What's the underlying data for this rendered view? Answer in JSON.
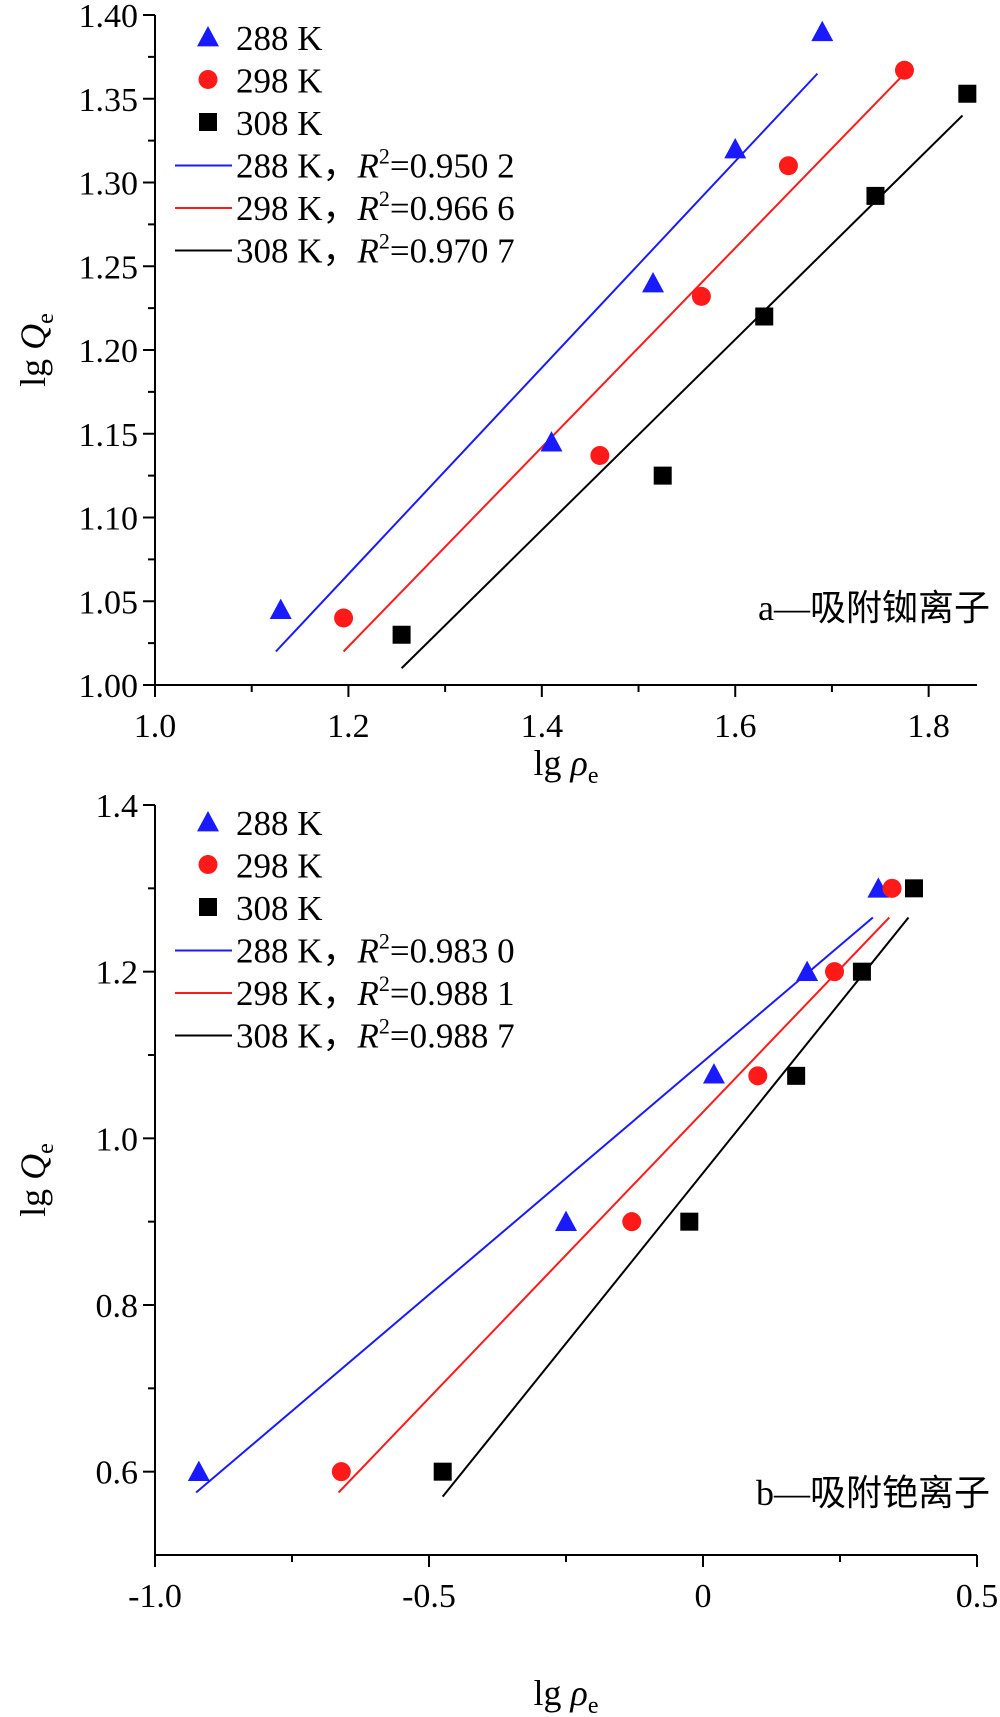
{
  "chart_data": [
    {
      "type": "scatter",
      "annotation": "a—吸附铷离子",
      "xlabel": "lg ρe",
      "ylabel": "lg Qe",
      "xlim": [
        1.0,
        1.85
      ],
      "ylim": [
        1.0,
        1.4
      ],
      "x_ticks": [
        "1.0",
        "1.2",
        "1.4",
        "1.6",
        "1.8"
      ],
      "y_ticks": [
        "1.00",
        "1.05",
        "1.10",
        "1.15",
        "1.20",
        "1.25",
        "1.30",
        "1.35",
        "1.40"
      ],
      "legend_position": "top-left",
      "series": [
        {
          "name": "288 K",
          "marker": "triangle",
          "color": "#1a1aff",
          "x": [
            1.13,
            1.41,
            1.515,
            1.6,
            1.69
          ],
          "y": [
            1.045,
            1.145,
            1.24,
            1.32,
            1.39
          ],
          "fit": {
            "label": "288 K，R²=0.950 2",
            "x": [
              1.125,
              1.685
            ],
            "y": [
              1.02,
              1.365
            ]
          }
        },
        {
          "name": "298 K",
          "marker": "circle",
          "color": "#ff1a1a",
          "x": [
            1.195,
            1.46,
            1.565,
            1.655,
            1.775
          ],
          "y": [
            1.04,
            1.137,
            1.232,
            1.31,
            1.367
          ],
          "fit": {
            "label": "298 K，R²=0.966 6",
            "x": [
              1.195,
              1.775
            ],
            "y": [
              1.02,
              1.365
            ]
          }
        },
        {
          "name": "308 K",
          "marker": "square",
          "color": "#000000",
          "x": [
            1.255,
            1.525,
            1.63,
            1.745,
            1.84
          ],
          "y": [
            1.03,
            1.125,
            1.22,
            1.292,
            1.353
          ],
          "fit": {
            "label": "308 K，R²=0.970 7",
            "x": [
              1.255,
              1.835
            ],
            "y": [
              1.01,
              1.34
            ]
          }
        }
      ]
    },
    {
      "type": "scatter",
      "annotation": "b—吸附铯离子",
      "xlabel": "lg ρe",
      "ylabel": "lg Qe",
      "xlim": [
        -1.0,
        0.5
      ],
      "ylim": [
        0.5,
        1.4
      ],
      "x_ticks": [
        "-1.0",
        "-0.5",
        "0",
        "0.5"
      ],
      "y_ticks": [
        "0.6",
        "0.8",
        "1.0",
        "1.2",
        "1.4"
      ],
      "legend_position": "top-left",
      "series": [
        {
          "name": "288 K",
          "marker": "triangle",
          "color": "#1a1aff",
          "x": [
            -0.92,
            -0.25,
            0.02,
            0.19,
            0.32
          ],
          "y": [
            0.6,
            0.9,
            1.077,
            1.2,
            1.3
          ],
          "fit": {
            "label": "288 K，R²=0.983 0",
            "x": [
              -0.925,
              0.31
            ],
            "y": [
              0.575,
              1.265
            ]
          }
        },
        {
          "name": "298 K",
          "marker": "circle",
          "color": "#ff1a1a",
          "x": [
            -0.66,
            -0.13,
            0.1,
            0.24,
            0.345
          ],
          "y": [
            0.6,
            0.9,
            1.075,
            1.2,
            1.3
          ],
          "fit": {
            "label": "298 K，R²=0.988 1",
            "x": [
              -0.665,
              0.34
            ],
            "y": [
              0.575,
              1.265
            ]
          }
        },
        {
          "name": "308 K",
          "marker": "square",
          "color": "#000000",
          "x": [
            -0.475,
            -0.025,
            0.17,
            0.29,
            0.385
          ],
          "y": [
            0.6,
            0.9,
            1.075,
            1.2,
            1.3
          ],
          "fit": {
            "label": "308 K，R²=0.988 7",
            "x": [
              -0.475,
              0.375
            ],
            "y": [
              0.57,
              1.265
            ]
          }
        }
      ]
    }
  ]
}
